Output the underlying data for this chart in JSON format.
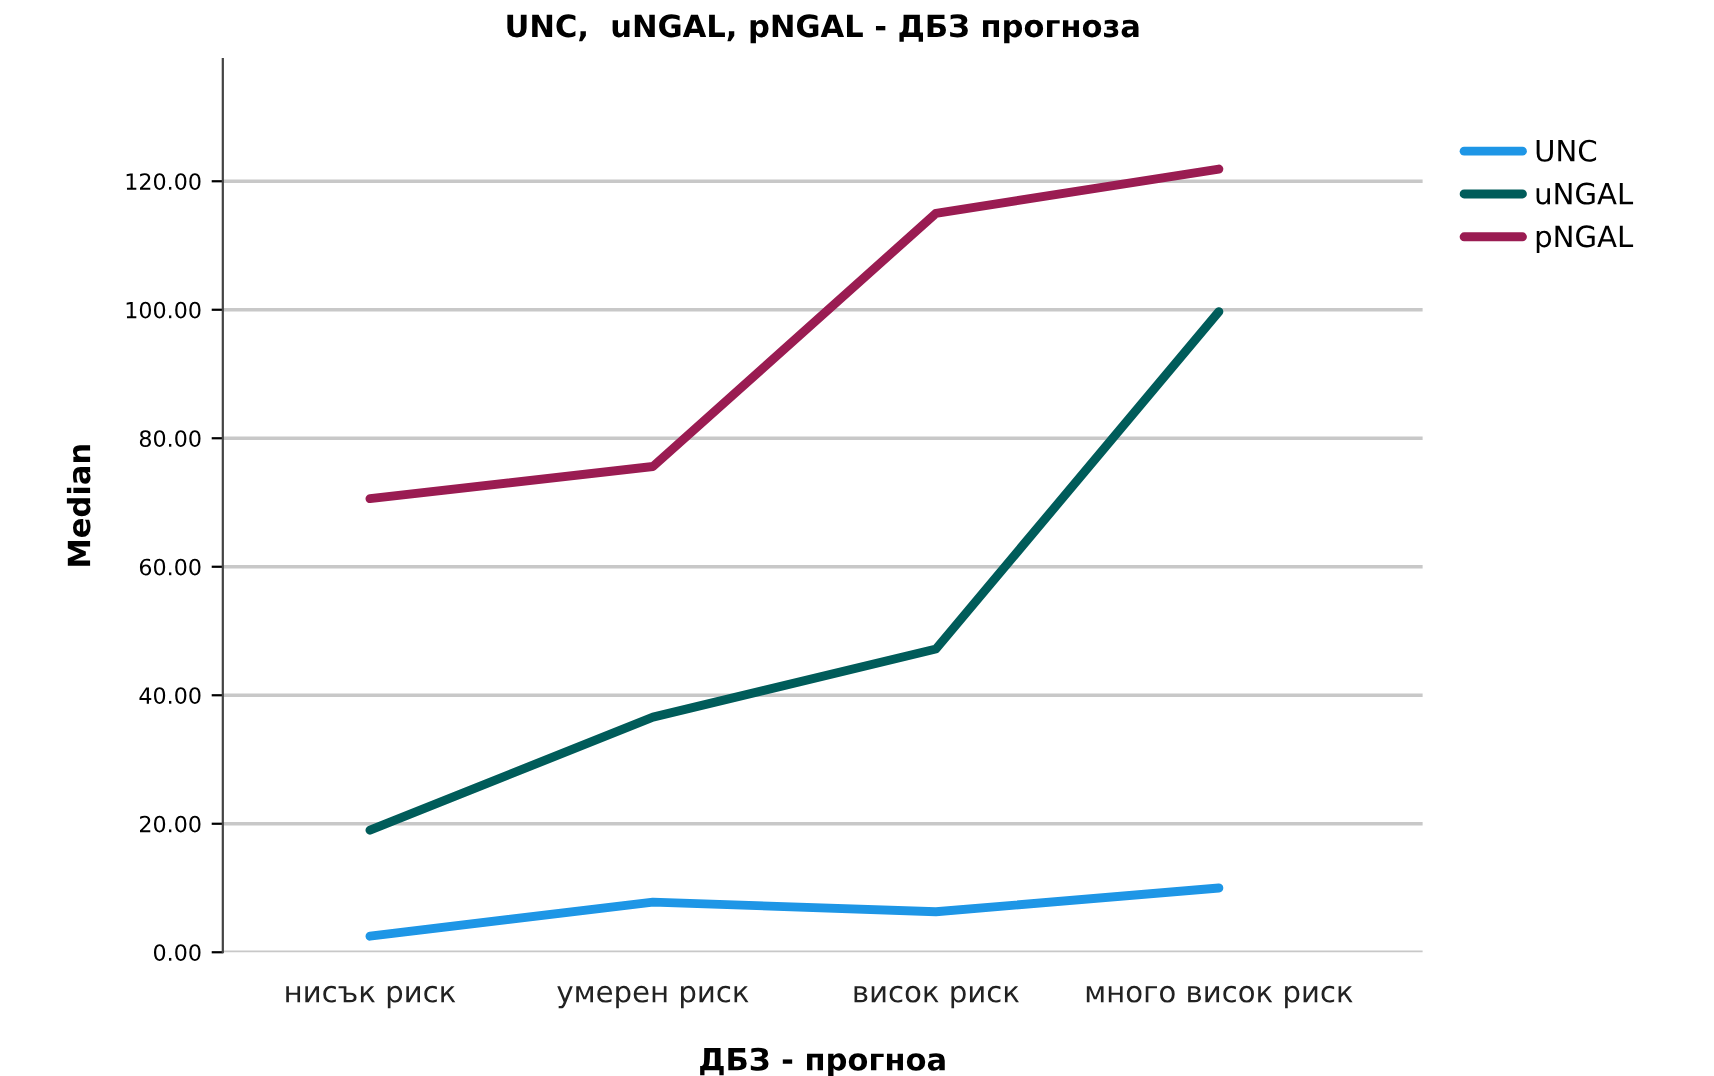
{
  "chart_data": {
    "type": "line",
    "title": "UNC,  uNGAL, pNGAL - ДБЗ прогноза",
    "xlabel": "ДБЗ - прогноа",
    "ylabel": "Median",
    "categories": [
      "нисък риск",
      "умерен риск",
      "висок риск",
      "много висок риск"
    ],
    "series": [
      {
        "name": "UNC",
        "color": "#1e96e6",
        "values": [
          2.5,
          7.8,
          6.3,
          10
        ]
      },
      {
        "name": "uNGAL",
        "color": "#005c5a",
        "values": [
          19,
          36.6,
          47.2,
          99.7
        ]
      },
      {
        "name": "pNGAL",
        "color": "#9a1c52",
        "values": [
          70.6,
          75.6,
          115,
          121.9
        ]
      }
    ],
    "ylim": [
      0,
      139
    ],
    "yticks": [
      {
        "value": 0,
        "label": "0.00"
      },
      {
        "value": 20,
        "label": "20.00"
      },
      {
        "value": 40,
        "label": "40.00"
      },
      {
        "value": 60,
        "label": "60.00"
      },
      {
        "value": 80,
        "label": "80.00"
      },
      {
        "value": 100,
        "label": "100.00"
      },
      {
        "value": 120,
        "label": "120.00"
      }
    ],
    "grid": "y",
    "legend": "right",
    "marker": "none",
    "line_style": "solid"
  }
}
